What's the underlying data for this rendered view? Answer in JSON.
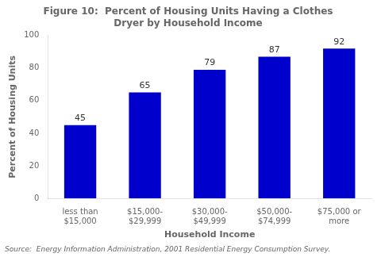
{
  "chart_data": {
    "type": "bar",
    "title": "Figure 10:  Percent of Housing Units Having a Clothes\nDryer by Household Income",
    "xlabel": "Household Income",
    "ylabel": "Percent of Housing Units",
    "source": "Source:  Energy Information Administration, 2001 Residential Energy Consumption Survey.",
    "categories": [
      "less than\n$15,000",
      "$15,000-\n$29,999",
      "$30,000-\n$49,999",
      "$50,000-\n$74,999",
      "$75,000 or\nmore"
    ],
    "values": [
      45,
      65,
      79,
      87,
      92
    ],
    "color": "#0000CC",
    "ylim": [
      0,
      100
    ],
    "yticks": [
      0,
      20,
      40,
      60,
      80,
      100
    ],
    "grid": false,
    "data_labels": true
  }
}
